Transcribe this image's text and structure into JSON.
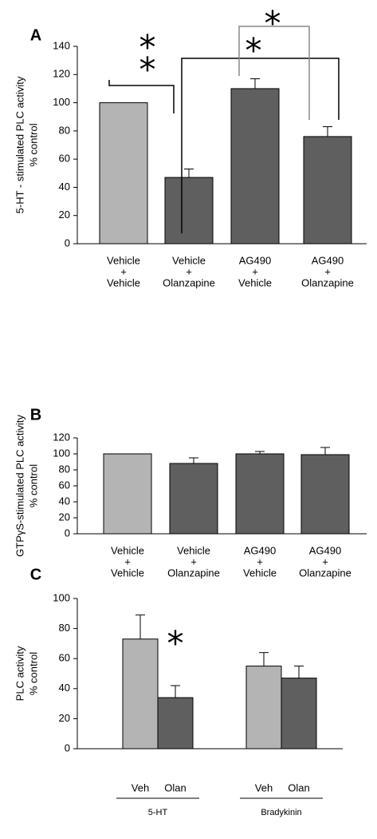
{
  "chart_data": [
    {
      "type": "bar",
      "panel_label": "A",
      "ylabel": [
        "5-HT - stimulated PLC activity",
        "% control"
      ],
      "categories": [
        [
          "Vehicle",
          "+",
          "Vehicle"
        ],
        [
          "Vehicle",
          "+",
          "Olanzapine"
        ],
        [
          "AG490",
          "+",
          "Vehicle"
        ],
        [
          "AG490",
          "+",
          "Olanzapine"
        ]
      ],
      "values": [
        100,
        47,
        110,
        76
      ],
      "errors": [
        null,
        6,
        7,
        7
      ],
      "colors": [
        "#b4b4b4",
        "#5f5f5f",
        "#5f5f5f",
        "#5f5f5f"
      ],
      "ylim": [
        0,
        140
      ],
      "yticks": [
        0,
        20,
        40,
        60,
        80,
        100,
        120,
        140
      ],
      "annotations": [
        "*",
        "*",
        "*",
        "*"
      ]
    },
    {
      "type": "bar",
      "panel_label": "B",
      "ylabel": [
        "GTPγS-stimulated PLC activity",
        "% control"
      ],
      "categories": [
        [
          "Vehicle",
          "+",
          "Vehicle"
        ],
        [
          "Vehicle",
          "+",
          "Olanzapine"
        ],
        [
          "AG490",
          "+",
          "Vehicle"
        ],
        [
          "AG490",
          "+",
          "Olanzapine"
        ]
      ],
      "values": [
        100,
        88,
        100,
        99
      ],
      "errors": [
        null,
        7,
        3,
        9
      ],
      "colors": [
        "#b4b4b4",
        "#5f5f5f",
        "#5f5f5f",
        "#5f5f5f"
      ],
      "ylim": [
        0,
        120
      ],
      "yticks": [
        0,
        20,
        40,
        60,
        80,
        100,
        120
      ]
    },
    {
      "type": "bar",
      "panel_label": "C",
      "ylabel": [
        "PLC activity",
        "% control"
      ],
      "categories": [
        "Veh",
        "Olan",
        "Veh",
        "Olan"
      ],
      "groups": [
        "5-HT",
        "Bradykinin"
      ],
      "values": [
        73,
        34,
        55,
        47
      ],
      "errors": [
        16,
        8,
        9,
        8
      ],
      "colors": [
        "#b4b4b4",
        "#5f5f5f",
        "#b4b4b4",
        "#5f5f5f"
      ],
      "ylim": [
        0,
        100
      ],
      "yticks": [
        0,
        20,
        40,
        60,
        80,
        100
      ],
      "annotations": [
        "*"
      ]
    }
  ]
}
